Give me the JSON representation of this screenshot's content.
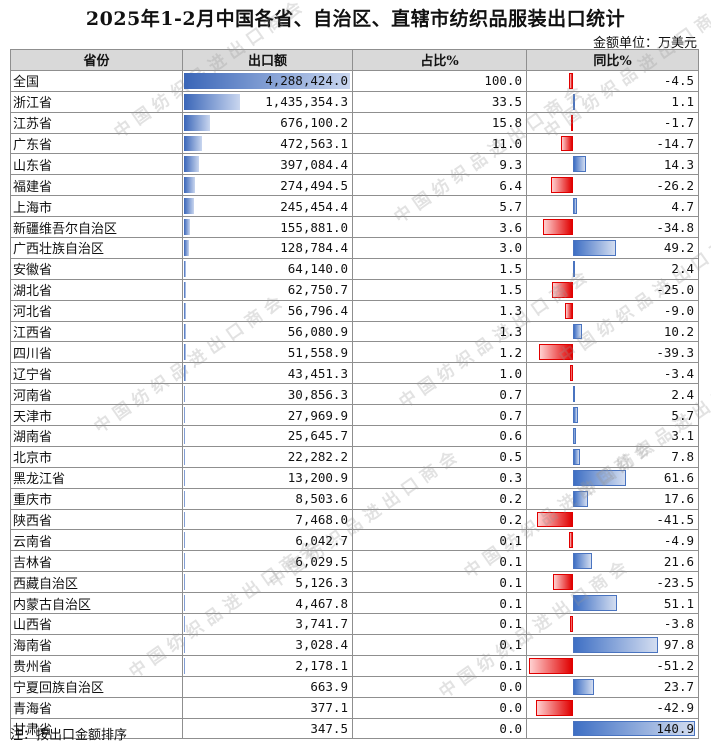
{
  "title": "2025年1-2月中国各省、自治区、直辖市纺织品服装出口统计",
  "unit": "金额单位：万美元",
  "headers": {
    "province": "省份",
    "export": "出口额",
    "share": "占比%",
    "yoy": "同比%"
  },
  "watermark": "中国纺织品进出口商会",
  "note": "注：按出口金额排序",
  "colors": {
    "positive_bar": "#3e6fc4",
    "negative_bar": "#e00000",
    "header_bg": "#d9d9d9"
  },
  "rows": [
    {
      "province": "全国",
      "export": "4,288,424.0",
      "share": "100.0",
      "yoy": "-4.5"
    },
    {
      "province": "浙江省",
      "export": "1,435,354.3",
      "share": "33.5",
      "yoy": "1.1"
    },
    {
      "province": "江苏省",
      "export": "676,100.2",
      "share": "15.8",
      "yoy": "-1.7"
    },
    {
      "province": "广东省",
      "export": "472,563.1",
      "share": "11.0",
      "yoy": "-14.7"
    },
    {
      "province": "山东省",
      "export": "397,084.4",
      "share": "9.3",
      "yoy": "14.3"
    },
    {
      "province": "福建省",
      "export": "274,494.5",
      "share": "6.4",
      "yoy": "-26.2"
    },
    {
      "province": "上海市",
      "export": "245,454.4",
      "share": "5.7",
      "yoy": "4.7"
    },
    {
      "province": "新疆维吾尔自治区",
      "export": "155,881.0",
      "share": "3.6",
      "yoy": "-34.8"
    },
    {
      "province": "广西壮族自治区",
      "export": "128,784.4",
      "share": "3.0",
      "yoy": "49.2"
    },
    {
      "province": "安徽省",
      "export": "64,140.0",
      "share": "1.5",
      "yoy": "2.4"
    },
    {
      "province": "湖北省",
      "export": "62,750.7",
      "share": "1.5",
      "yoy": "-25.0"
    },
    {
      "province": "河北省",
      "export": "56,796.4",
      "share": "1.3",
      "yoy": "-9.0"
    },
    {
      "province": "江西省",
      "export": "56,080.9",
      "share": "1.3",
      "yoy": "10.2"
    },
    {
      "province": "四川省",
      "export": "51,558.9",
      "share": "1.2",
      "yoy": "-39.3"
    },
    {
      "province": "辽宁省",
      "export": "43,451.3",
      "share": "1.0",
      "yoy": "-3.4"
    },
    {
      "province": "河南省",
      "export": "30,856.3",
      "share": "0.7",
      "yoy": "2.4"
    },
    {
      "province": "天津市",
      "export": "27,969.9",
      "share": "0.7",
      "yoy": "5.7"
    },
    {
      "province": "湖南省",
      "export": "25,645.7",
      "share": "0.6",
      "yoy": "3.1"
    },
    {
      "province": "北京市",
      "export": "22,282.2",
      "share": "0.5",
      "yoy": "7.8"
    },
    {
      "province": "黑龙江省",
      "export": "13,200.9",
      "share": "0.3",
      "yoy": "61.6"
    },
    {
      "province": "重庆市",
      "export": "8,503.6",
      "share": "0.2",
      "yoy": "17.6"
    },
    {
      "province": "陕西省",
      "export": "7,468.0",
      "share": "0.2",
      "yoy": "-41.5"
    },
    {
      "province": "云南省",
      "export": "6,042.7",
      "share": "0.1",
      "yoy": "-4.9"
    },
    {
      "province": "吉林省",
      "export": "6,029.5",
      "share": "0.1",
      "yoy": "21.6"
    },
    {
      "province": "西藏自治区",
      "export": "5,126.3",
      "share": "0.1",
      "yoy": "-23.5"
    },
    {
      "province": "内蒙古自治区",
      "export": "4,467.8",
      "share": "0.1",
      "yoy": "51.1"
    },
    {
      "province": "山西省",
      "export": "3,741.7",
      "share": "0.1",
      "yoy": "-3.8"
    },
    {
      "province": "海南省",
      "export": "3,028.4",
      "share": "0.1",
      "yoy": "97.8"
    },
    {
      "province": "贵州省",
      "export": "2,178.1",
      "share": "0.1",
      "yoy": "-51.2"
    },
    {
      "province": "宁夏回族自治区",
      "export": "663.9",
      "share": "0.0",
      "yoy": "23.7"
    },
    {
      "province": "青海省",
      "export": "377.1",
      "share": "0.0",
      "yoy": "-42.9"
    },
    {
      "province": "甘肃省",
      "export": "347.5",
      "share": "0.0",
      "yoy": "140.9"
    }
  ]
}
